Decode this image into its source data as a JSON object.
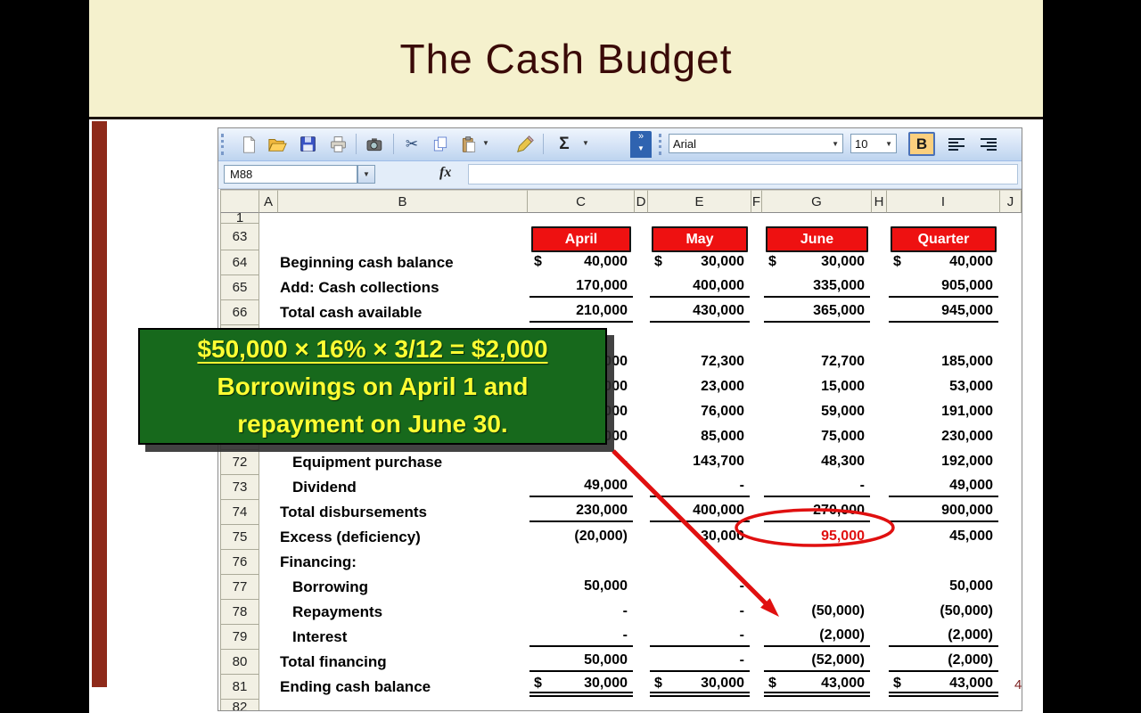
{
  "slide": {
    "title": "The Cash Budget",
    "page_number": "4"
  },
  "callout": {
    "line1": "$50,000 × 16% × 3/12 = $2,000",
    "line2": "Borrowings on April 1 and",
    "line3": "repayment on June 30."
  },
  "excel": {
    "name_box": "M88",
    "fx_label": "fx",
    "toolbar": {
      "font_name": "Arial",
      "font_size": "10",
      "bold_label": "B",
      "autosum_glyph": "Σ",
      "cut_glyph": "✂",
      "dropdown_glyph": "▼",
      "chevron_glyph": "»",
      "icon_names": [
        "new-document",
        "open-folder",
        "save",
        "print",
        "camera",
        "cut",
        "copy",
        "paste",
        "format-painter",
        "autosum",
        "toolbar-options",
        "font-name-select",
        "font-size-select",
        "bold-button",
        "align-left",
        "align-right"
      ]
    },
    "columns": [
      "",
      "A",
      "B",
      "C",
      "D",
      "E",
      "F",
      "G",
      "H",
      "I",
      "J"
    ]
  },
  "sheet": {
    "value_columns": [
      "April",
      "May",
      "June",
      "Quarter"
    ],
    "rows": [
      {
        "num": "1",
        "type": "spacer",
        "label": "",
        "cells": [
          "",
          "",
          "",
          ""
        ]
      },
      {
        "num": "63",
        "type": "headers",
        "label": "",
        "cells": [
          "April",
          "May",
          "June",
          "Quarter"
        ]
      },
      {
        "num": "64",
        "type": "data",
        "label": "Beginning cash balance",
        "indent": 0,
        "dollar": true,
        "underline": "none",
        "cells": [
          "40,000",
          "30,000",
          "30,000",
          "40,000"
        ]
      },
      {
        "num": "65",
        "type": "data",
        "label": "Add: Cash collections",
        "indent": 0,
        "underline": "single",
        "cells": [
          "170,000",
          "400,000",
          "335,000",
          "905,000"
        ]
      },
      {
        "num": "66",
        "type": "data",
        "label": "Total cash available",
        "indent": 0,
        "underline": "single",
        "cells": [
          "210,000",
          "430,000",
          "365,000",
          "945,000"
        ]
      },
      {
        "num": "67",
        "type": "data",
        "label": "",
        "cells": [
          "",
          "",
          "",
          ""
        ]
      },
      {
        "num": "68",
        "type": "data",
        "label": "",
        "cells": [
          "40,000",
          "72,300",
          "72,700",
          "185,000"
        ]
      },
      {
        "num": "69",
        "type": "data",
        "label": "",
        "cells": [
          "15,000",
          "23,000",
          "15,000",
          "53,000"
        ]
      },
      {
        "num": "70",
        "type": "data",
        "label": "",
        "cells": [
          "56,000",
          "76,000",
          "59,000",
          "191,000"
        ]
      },
      {
        "num": "71",
        "type": "data",
        "label": "",
        "cells": [
          "70,000",
          "85,000",
          "75,000",
          "230,000"
        ]
      },
      {
        "num": "72",
        "type": "data",
        "label": "Equipment purchase",
        "indent": 1,
        "cells": [
          "-",
          "143,700",
          "48,300",
          "192,000"
        ]
      },
      {
        "num": "73",
        "type": "data",
        "label": "Dividend",
        "indent": 1,
        "underline": "single",
        "cells": [
          "49,000",
          "-",
          "-",
          "49,000"
        ]
      },
      {
        "num": "74",
        "type": "data",
        "label": "Total disbursements",
        "underline": "single",
        "cells": [
          "230,000",
          "400,000",
          "270,000",
          "900,000"
        ]
      },
      {
        "num": "75",
        "type": "data",
        "label": "Excess (deficiency)",
        "june_red": true,
        "cells": [
          "(20,000)",
          "30,000",
          "95,000",
          "45,000"
        ]
      },
      {
        "num": "76",
        "type": "data",
        "label": "Financing:",
        "cells": [
          "",
          "",
          "",
          ""
        ]
      },
      {
        "num": "77",
        "type": "data",
        "label": "Borrowing",
        "indent": 1,
        "cells": [
          "50,000",
          "-",
          "",
          "50,000"
        ]
      },
      {
        "num": "78",
        "type": "data",
        "label": "Repayments",
        "indent": 1,
        "cells": [
          "-",
          "-",
          "(50,000)",
          "(50,000)"
        ]
      },
      {
        "num": "79",
        "type": "data",
        "label": "Interest",
        "indent": 1,
        "underline": "single",
        "cells": [
          "-",
          "-",
          "(2,000)",
          "(2,000)"
        ]
      },
      {
        "num": "80",
        "type": "data",
        "label": "Total financing",
        "underline": "single",
        "cells": [
          "50,000",
          "-",
          "(52,000)",
          "(2,000)"
        ]
      },
      {
        "num": "81",
        "type": "data",
        "label": "Ending cash balance",
        "dollar": true,
        "underline": "double",
        "cells": [
          "30,000",
          "30,000",
          "43,000",
          "43,000"
        ]
      },
      {
        "num": "82",
        "type": "last",
        "label": "",
        "cells": [
          "",
          "",
          "",
          ""
        ]
      }
    ]
  },
  "colors": {
    "banner_bg": "#F5F1CD",
    "title_color": "#3A0A08",
    "sidebar_red": "#8E2A1A",
    "month_header_bg": "#EE1111",
    "month_header_text": "#FFFFFF",
    "callout_bg": "#17691C",
    "callout_text": "#FFFF33",
    "annotation_red": "#E01010"
  }
}
